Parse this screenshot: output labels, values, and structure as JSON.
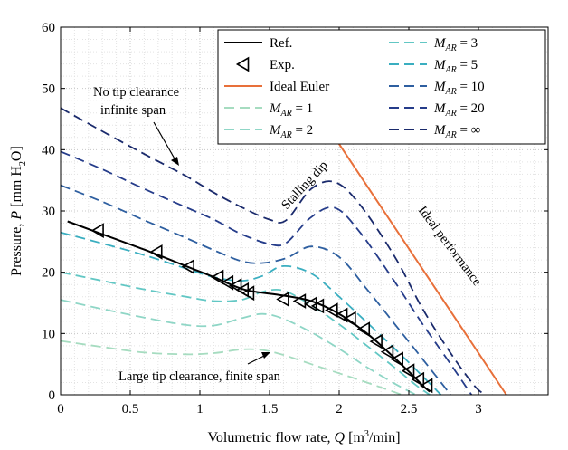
{
  "chart_data": {
    "type": "line",
    "xlabel_pre": "Volumetric flow rate, ",
    "xlabel_var": "Q",
    "xlabel_unit_pre": " [m",
    "xlabel_unit_sup": "3",
    "xlabel_unit_post": "/min]",
    "ylabel_pre": "Pressure, ",
    "ylabel_var": "P",
    "ylabel_unit_pre": " [mm H",
    "ylabel_unit_sub": "2",
    "ylabel_unit_post": "O]",
    "xlim": [
      0,
      3.5
    ],
    "ylim": [
      0,
      60
    ],
    "xticks": [
      0,
      0.5,
      1,
      1.5,
      2,
      2.5,
      3
    ],
    "xtick_labels": [
      "0",
      "0.5",
      "1",
      "1.5",
      "2",
      "2.5",
      "3"
    ],
    "yticks": [
      0,
      10,
      20,
      30,
      40,
      50,
      60
    ],
    "ytick_labels": [
      "0",
      "10",
      "20",
      "30",
      "40",
      "50",
      "60"
    ],
    "grid": true,
    "legend_position": "top-right",
    "series": [
      {
        "name": "Ref.",
        "style": "solid",
        "color": "#000000",
        "x": [
          0.05,
          0.3,
          0.6,
          0.9,
          1.1,
          1.2,
          1.3,
          1.4,
          1.6,
          1.8,
          2.0,
          2.2,
          2.35,
          2.5,
          2.6,
          2.65
        ],
        "y": [
          28.3,
          26.2,
          23.7,
          21.0,
          19.2,
          18.2,
          17.3,
          16.8,
          16.2,
          15.3,
          13.2,
          10.0,
          7.0,
          3.8,
          1.5,
          0.5
        ]
      },
      {
        "name": "Exp.",
        "style": "marker",
        "color": "#000000",
        "x": [
          0.27,
          0.69,
          0.92,
          1.13,
          1.2,
          1.26,
          1.31,
          1.35,
          1.6,
          1.72,
          1.8,
          1.85,
          1.95,
          2.02,
          2.08,
          2.18,
          2.27,
          2.35,
          2.42,
          2.5,
          2.57,
          2.63
        ],
        "y": [
          26.8,
          23.3,
          20.9,
          19.2,
          18.3,
          17.8,
          17.1,
          16.6,
          15.6,
          15.3,
          14.8,
          14.5,
          13.8,
          13.0,
          12.4,
          10.7,
          8.7,
          7.0,
          5.8,
          3.9,
          2.5,
          1.5
        ]
      },
      {
        "name": "Ideal Euler",
        "style": "solid",
        "color": "#e8703a",
        "x": [
          1.88,
          3.2
        ],
        "y": [
          45.0,
          0.0
        ]
      },
      {
        "name": "M_AR = 1",
        "label_base": "M",
        "label_sub": "AR",
        "label_rest": " = 1",
        "style": "dashed",
        "color": "#a6dcc0",
        "x": [
          0.0,
          0.3,
          0.6,
          0.9,
          1.1,
          1.3,
          1.45,
          1.6,
          1.8,
          2.0,
          2.2,
          2.45
        ],
        "y": [
          8.8,
          7.8,
          6.9,
          6.6,
          6.8,
          7.4,
          7.3,
          6.5,
          5.0,
          3.5,
          2.0,
          0.0
        ]
      },
      {
        "name": "M_AR = 2",
        "label_base": "M",
        "label_sub": "AR",
        "label_rest": " = 2",
        "style": "dashed",
        "color": "#8fd6c6",
        "x": [
          0.0,
          0.3,
          0.6,
          0.9,
          1.1,
          1.3,
          1.45,
          1.6,
          1.8,
          2.0,
          2.2,
          2.4,
          2.55
        ],
        "y": [
          15.5,
          14.0,
          12.6,
          11.4,
          11.3,
          12.5,
          13.2,
          12.4,
          10.2,
          7.5,
          4.5,
          1.8,
          0.0
        ]
      },
      {
        "name": "M_AR = 3",
        "label_base": "M",
        "label_sub": "AR",
        "label_rest": " = 3",
        "style": "dashed",
        "color": "#62c7c4",
        "x": [
          0.0,
          0.3,
          0.6,
          0.9,
          1.1,
          1.3,
          1.45,
          1.6,
          1.8,
          2.0,
          2.2,
          2.4,
          2.55,
          2.65
        ],
        "y": [
          20.0,
          18.6,
          17.2,
          16.0,
          15.3,
          15.5,
          16.8,
          17.0,
          14.6,
          11.5,
          8.0,
          4.4,
          1.6,
          0.0
        ]
      },
      {
        "name": "M_AR = 5",
        "label_base": "M",
        "label_sub": "AR",
        "label_rest": " = 5",
        "style": "dashed",
        "color": "#3aaec0",
        "x": [
          0.0,
          0.3,
          0.6,
          0.9,
          1.1,
          1.3,
          1.45,
          1.6,
          1.8,
          2.0,
          2.2,
          2.4,
          2.6,
          2.73
        ],
        "y": [
          26.5,
          24.7,
          22.8,
          20.6,
          19.2,
          18.6,
          19.4,
          21.0,
          19.8,
          16.0,
          11.8,
          7.5,
          3.0,
          0.0
        ]
      },
      {
        "name": "M_AR = 10",
        "label_base": "M",
        "label_sub": "AR",
        "label_rest": " = 10",
        "style": "dashed",
        "color": "#2e5fa0",
        "x": [
          0.0,
          0.3,
          0.6,
          0.9,
          1.1,
          1.3,
          1.45,
          1.62,
          1.8,
          2.0,
          2.2,
          2.4,
          2.6,
          2.8
        ],
        "y": [
          34.2,
          31.5,
          28.5,
          25.6,
          23.6,
          21.8,
          21.5,
          22.3,
          24.2,
          22.5,
          17.2,
          11.5,
          5.8,
          0.0
        ]
      },
      {
        "name": "M_AR = 20",
        "label_base": "M",
        "label_sub": "AR",
        "label_rest": " = 20",
        "style": "dashed",
        "color": "#253c8a",
        "x": [
          0.0,
          0.3,
          0.6,
          0.9,
          1.1,
          1.3,
          1.5,
          1.62,
          1.8,
          1.97,
          2.15,
          2.4,
          2.6,
          2.8,
          2.95
        ],
        "y": [
          39.7,
          36.8,
          33.6,
          30.6,
          28.6,
          26.2,
          24.6,
          24.8,
          29.0,
          30.5,
          26.5,
          18.4,
          11.5,
          5.0,
          0.0
        ]
      },
      {
        "name": "M_AR = ∞",
        "label_base": "M",
        "label_sub": "AR",
        "label_rest": " = ∞",
        "style": "dashed",
        "color": "#1a2a6c",
        "x": [
          0.0,
          0.3,
          0.6,
          0.9,
          1.1,
          1.3,
          1.5,
          1.62,
          1.8,
          1.97,
          2.15,
          2.4,
          2.6,
          2.8,
          2.97,
          3.05
        ],
        "y": [
          46.8,
          43.0,
          39.3,
          35.7,
          33.0,
          30.6,
          28.6,
          28.5,
          33.6,
          34.7,
          31.0,
          22.5,
          14.0,
          6.8,
          1.5,
          0.0
        ]
      }
    ],
    "annotations": {
      "no_tip_line1": "No tip clearance",
      "no_tip_line2": "infinite span",
      "stalling_dip": "Stalling dip",
      "ideal_performance": "Ideal performance",
      "large_tip": "Large tip clearance, finite span"
    }
  }
}
